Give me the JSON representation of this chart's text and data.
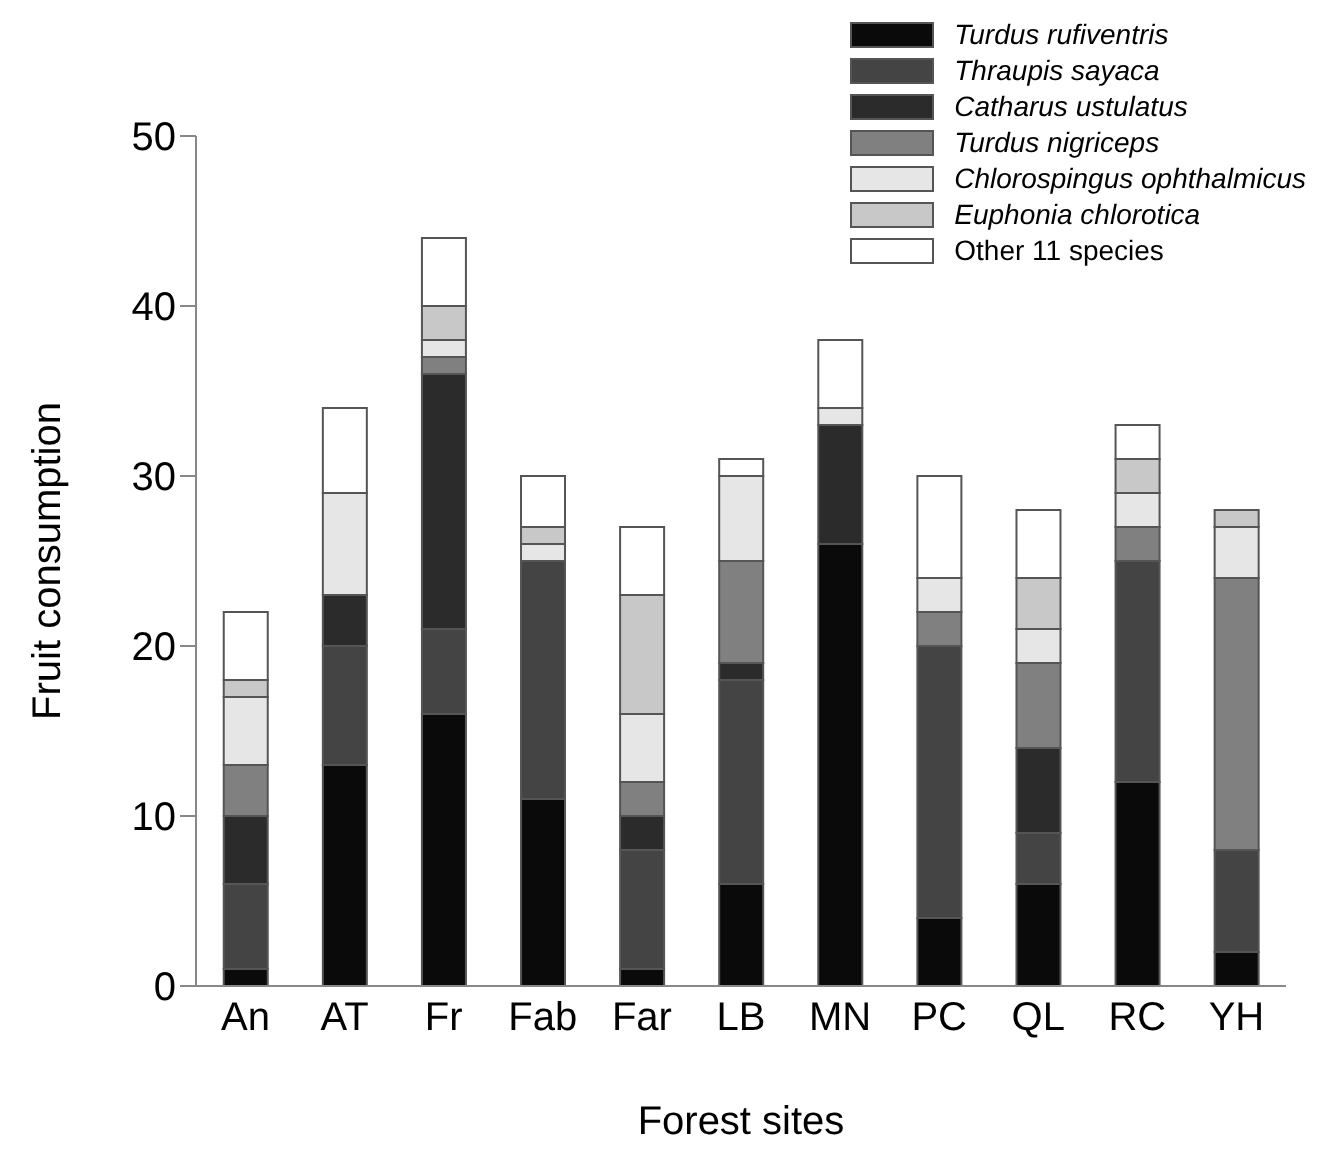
{
  "chart_data": {
    "type": "bar",
    "stacked": true,
    "xlabel": "Forest sites",
    "ylabel": "Fruit consumption",
    "categories": [
      "An",
      "AT",
      "Fr",
      "Fab",
      "Far",
      "LB",
      "MN",
      "PC",
      "QL",
      "RC",
      "YH"
    ],
    "series": [
      {
        "name": "Turdus rufiventris",
        "color": "#0a0a0a",
        "values": [
          1,
          13,
          16,
          11,
          1,
          6,
          26,
          4,
          6,
          12,
          2
        ]
      },
      {
        "name": "Thraupis sayaca",
        "color": "#444444",
        "values": [
          5,
          7,
          5,
          14,
          7,
          12,
          0,
          16,
          3,
          13,
          6
        ]
      },
      {
        "name": "Catharus ustulatus",
        "color": "#2b2b2b",
        "values": [
          4,
          3,
          15,
          0,
          2,
          1,
          7,
          0,
          5,
          0,
          0
        ]
      },
      {
        "name": "Turdus nigriceps",
        "color": "#808080",
        "values": [
          3,
          0,
          1,
          0,
          2,
          6,
          0,
          2,
          5,
          2,
          16
        ]
      },
      {
        "name": "Chlorospingus ophthalmicus",
        "color": "#e6e6e6",
        "values": [
          4,
          6,
          1,
          1,
          4,
          5,
          1,
          2,
          2,
          2,
          3
        ]
      },
      {
        "name": "Euphonia chlorotica",
        "color": "#c8c8c8",
        "values": [
          1,
          0,
          2,
          1,
          7,
          0,
          0,
          0,
          3,
          2,
          1
        ]
      },
      {
        "name": "Other 11 species",
        "color": "#ffffff",
        "values": [
          4,
          5,
          4,
          3,
          4,
          1,
          4,
          6,
          4,
          2,
          0
        ]
      }
    ],
    "ylim": [
      0,
      50
    ],
    "yticks": [
      0,
      10,
      20,
      30,
      40,
      50
    ],
    "grid": false,
    "legend": "top right"
  }
}
